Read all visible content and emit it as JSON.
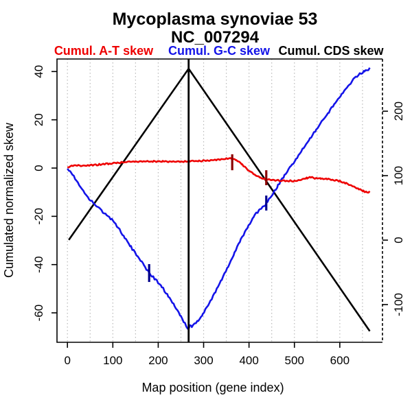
{
  "chart_data": {
    "type": "line",
    "title": "Mycoplasma synoviae 53",
    "subtitle": "NC_007294",
    "xlabel": "Map position (gene index)",
    "ylabel_left": "Cumulated normalized skew",
    "grid": "vertical dotted, every 50 gene-index units",
    "legend_position": "top, single row above plot",
    "legend": [
      {
        "label": "Cumul. A-T skew",
        "color": "#ee0000"
      },
      {
        "label": "Cumul. G-C skew",
        "color": "#1414e8"
      },
      {
        "label": "Cumul. CDS skew",
        "color": "#000000"
      }
    ],
    "x_axis": {
      "range": [
        -23,
        694
      ],
      "ticks": [
        0,
        100,
        200,
        300,
        400,
        500,
        600
      ],
      "grid_start": 0,
      "grid_step": 50,
      "grid_end": 650
    },
    "y_axis_left": {
      "range": [
        -72.2,
        45.2
      ],
      "ticks": [
        40,
        20,
        0,
        -20,
        -40,
        -60
      ]
    },
    "y_axis_right": {
      "range": [
        -158.5,
        281
      ],
      "ticks": [
        200,
        100,
        0,
        -100
      ]
    },
    "origin_terminus_line_x": 267,
    "series": [
      {
        "name": "Cumul. CDS skew",
        "color": "#000000",
        "noise": 0,
        "points": [
          [
            3,
            -29.8
          ],
          [
            267,
            41.2
          ],
          [
            666,
            -67.6
          ]
        ]
      },
      {
        "name": "Cumul. G-C skew",
        "color": "#1414e8",
        "noise": 0.45,
        "points": [
          [
            0,
            0
          ],
          [
            8,
            -1.5
          ],
          [
            20,
            -5
          ],
          [
            32,
            -8.5
          ],
          [
            45,
            -12
          ],
          [
            58,
            -14.5
          ],
          [
            72,
            -17
          ],
          [
            86,
            -19.2
          ],
          [
            100,
            -21.5
          ],
          [
            112,
            -24.5
          ],
          [
            126,
            -28.5
          ],
          [
            140,
            -32.5
          ],
          [
            155,
            -36.5
          ],
          [
            168,
            -40
          ],
          [
            180,
            -43.2
          ],
          [
            194,
            -46
          ],
          [
            208,
            -49
          ],
          [
            222,
            -52.8
          ],
          [
            236,
            -57
          ],
          [
            250,
            -61.2
          ],
          [
            262,
            -65.3
          ],
          [
            267,
            -66.8
          ],
          [
            270,
            -64.8
          ],
          [
            274,
            -65.6
          ],
          [
            280,
            -64.6
          ],
          [
            288,
            -63
          ],
          [
            298,
            -60.5
          ],
          [
            312,
            -56
          ],
          [
            326,
            -51
          ],
          [
            340,
            -45.8
          ],
          [
            354,
            -40.5
          ],
          [
            368,
            -35
          ],
          [
            382,
            -29.5
          ],
          [
            396,
            -24.5
          ],
          [
            410,
            -20
          ],
          [
            424,
            -16.8
          ],
          [
            438,
            -14.6
          ],
          [
            450,
            -11.2
          ],
          [
            464,
            -7
          ],
          [
            478,
            -3
          ],
          [
            492,
            0.8
          ],
          [
            506,
            4.5
          ],
          [
            520,
            8.5
          ],
          [
            534,
            12.3
          ],
          [
            548,
            16
          ],
          [
            562,
            19.8
          ],
          [
            576,
            23.5
          ],
          [
            590,
            27.2
          ],
          [
            604,
            30.8
          ],
          [
            618,
            34.2
          ],
          [
            632,
            37.3
          ],
          [
            644,
            39.2
          ],
          [
            654,
            40.2
          ],
          [
            660,
            40.8
          ],
          [
            666,
            41.6
          ]
        ]
      },
      {
        "name": "Cumul. A-T skew",
        "color": "#ee0000",
        "noise": 0.3,
        "points": [
          [
            0,
            0.5
          ],
          [
            12,
            1.1
          ],
          [
            30,
            1.2
          ],
          [
            50,
            1.3
          ],
          [
            70,
            1.6
          ],
          [
            90,
            1.9
          ],
          [
            110,
            2.3
          ],
          [
            130,
            2.6
          ],
          [
            150,
            2.85
          ],
          [
            170,
            2.9
          ],
          [
            190,
            2.9
          ],
          [
            210,
            2.85
          ],
          [
            230,
            2.75
          ],
          [
            250,
            2.85
          ],
          [
            270,
            2.95
          ],
          [
            290,
            3.05
          ],
          [
            310,
            3.3
          ],
          [
            330,
            3.6
          ],
          [
            350,
            3.95
          ],
          [
            362,
            4.1
          ],
          [
            372,
            3.4
          ],
          [
            385,
            1.6
          ],
          [
            398,
            -0.6
          ],
          [
            412,
            -2.6
          ],
          [
            425,
            -3.9
          ],
          [
            438,
            -4.6
          ],
          [
            452,
            -4.85
          ],
          [
            468,
            -5.0
          ],
          [
            485,
            -5.15
          ],
          [
            500,
            -5.2
          ],
          [
            515,
            -4.8
          ],
          [
            528,
            -4.0
          ],
          [
            536,
            -3.6
          ],
          [
            545,
            -4.05
          ],
          [
            558,
            -4.15
          ],
          [
            572,
            -4.35
          ],
          [
            586,
            -4.7
          ],
          [
            600,
            -5.3
          ],
          [
            614,
            -6.2
          ],
          [
            628,
            -7.3
          ],
          [
            642,
            -8.6
          ],
          [
            652,
            -9.4
          ],
          [
            660,
            -9.9
          ],
          [
            666,
            -9.6
          ]
        ]
      }
    ],
    "markers": [
      {
        "series": "Cumul. A-T skew",
        "x": 363,
        "v1": 5.7,
        "v2": -0.9,
        "color": "#8b0000"
      },
      {
        "series": "Cumul. A-T skew",
        "x": 438,
        "v1": -0.9,
        "v2": -7.1,
        "color": "#8b0000"
      },
      {
        "series": "Cumul. G-C skew",
        "x": 180,
        "v1": -39.8,
        "v2": -47.2,
        "color": "#00008b"
      },
      {
        "series": "Cumul. G-C skew",
        "x": 438,
        "v1": -11.4,
        "v2": -17.6,
        "color": "#00008b"
      }
    ]
  }
}
